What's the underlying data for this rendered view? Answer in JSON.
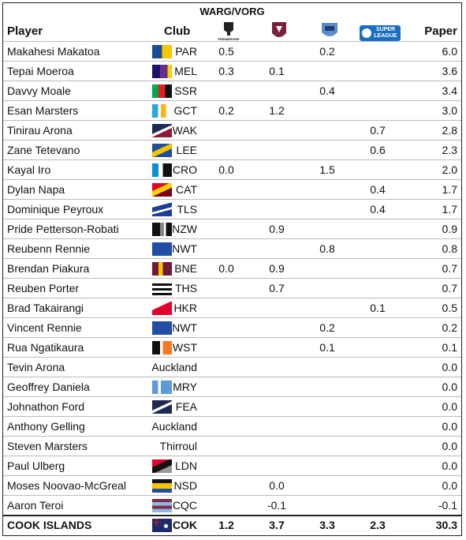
{
  "header": {
    "group": "WARG/VORG",
    "player": "Player",
    "club": "Club",
    "paper": "Paper",
    "logo_nrl": "PREMIERSHIP",
    "logo_super_league": [
      "SUPER",
      "LEAGUE"
    ]
  },
  "table": {
    "rows": [
      [
        "Makahesi Makatoa",
        "PAR",
        "0.5",
        null,
        "0.2",
        null,
        "6.0"
      ],
      [
        "Tepai Moeroa",
        "MEL",
        "0.3",
        "0.1",
        null,
        null,
        "3.6"
      ],
      [
        "Davvy Moale",
        "SSR",
        null,
        null,
        "0.4",
        null,
        "3.4"
      ],
      [
        "Esan Marsters",
        "GCT",
        "0.2",
        "1.2",
        null,
        null,
        "3.0"
      ],
      [
        "Tinirau Arona",
        "WAK",
        null,
        null,
        null,
        "0.7",
        "2.8"
      ],
      [
        "Zane Tetevano",
        "LEE",
        null,
        null,
        null,
        "0.6",
        "2.3"
      ],
      [
        "Kayal Iro",
        "CRO",
        "0.0",
        null,
        "1.5",
        null,
        "2.0"
      ],
      [
        "Dylan Napa",
        "CAT",
        null,
        null,
        null,
        "0.4",
        "1.7"
      ],
      [
        "Dominique Peyroux",
        "TLS",
        null,
        null,
        null,
        "0.4",
        "1.7"
      ],
      [
        "Pride Petterson-Robati",
        "NZW",
        null,
        "0.9",
        null,
        null,
        "0.9"
      ],
      [
        "Reubenn Rennie",
        "NWT",
        null,
        null,
        "0.8",
        null,
        "0.8"
      ],
      [
        "Brendan Piakura",
        "BNE",
        "0.0",
        "0.9",
        null,
        null,
        "0.7"
      ],
      [
        "Reuben Porter",
        "THS",
        null,
        "0.7",
        null,
        null,
        "0.7"
      ],
      [
        "Brad Takairangi",
        "HKR",
        null,
        null,
        null,
        "0.1",
        "0.5"
      ],
      [
        "Vincent Rennie",
        "NWT",
        null,
        null,
        "0.2",
        null,
        "0.2"
      ],
      [
        "Rua Ngatikaura",
        "WST",
        null,
        null,
        "0.1",
        null,
        "0.1"
      ],
      [
        "Tevin Arona",
        "Auckland",
        null,
        null,
        null,
        null,
        "0.0"
      ],
      [
        "Geoffrey Daniela",
        "MRY",
        null,
        null,
        null,
        null,
        "0.0"
      ],
      [
        "Johnathon Ford",
        "FEA",
        null,
        null,
        null,
        null,
        "0.0"
      ],
      [
        "Anthony Gelling",
        "Auckland",
        null,
        null,
        null,
        null,
        "0.0"
      ],
      [
        "Steven Marsters",
        "Thirroul",
        null,
        null,
        null,
        null,
        "0.0"
      ],
      [
        "Paul Ulberg",
        "LDN",
        null,
        null,
        null,
        null,
        "0.0"
      ],
      [
        "Moses Noovao-McGreal",
        "NSD",
        null,
        "0.0",
        null,
        null,
        "0.0"
      ],
      [
        "Aaron Teroi",
        "CQC",
        null,
        "-0.1",
        null,
        null,
        "-0.1"
      ]
    ],
    "total": [
      "COOK ISLANDS",
      "COK",
      "1.2",
      "3.7",
      "3.3",
      "2.3",
      "30.3"
    ]
  }
}
